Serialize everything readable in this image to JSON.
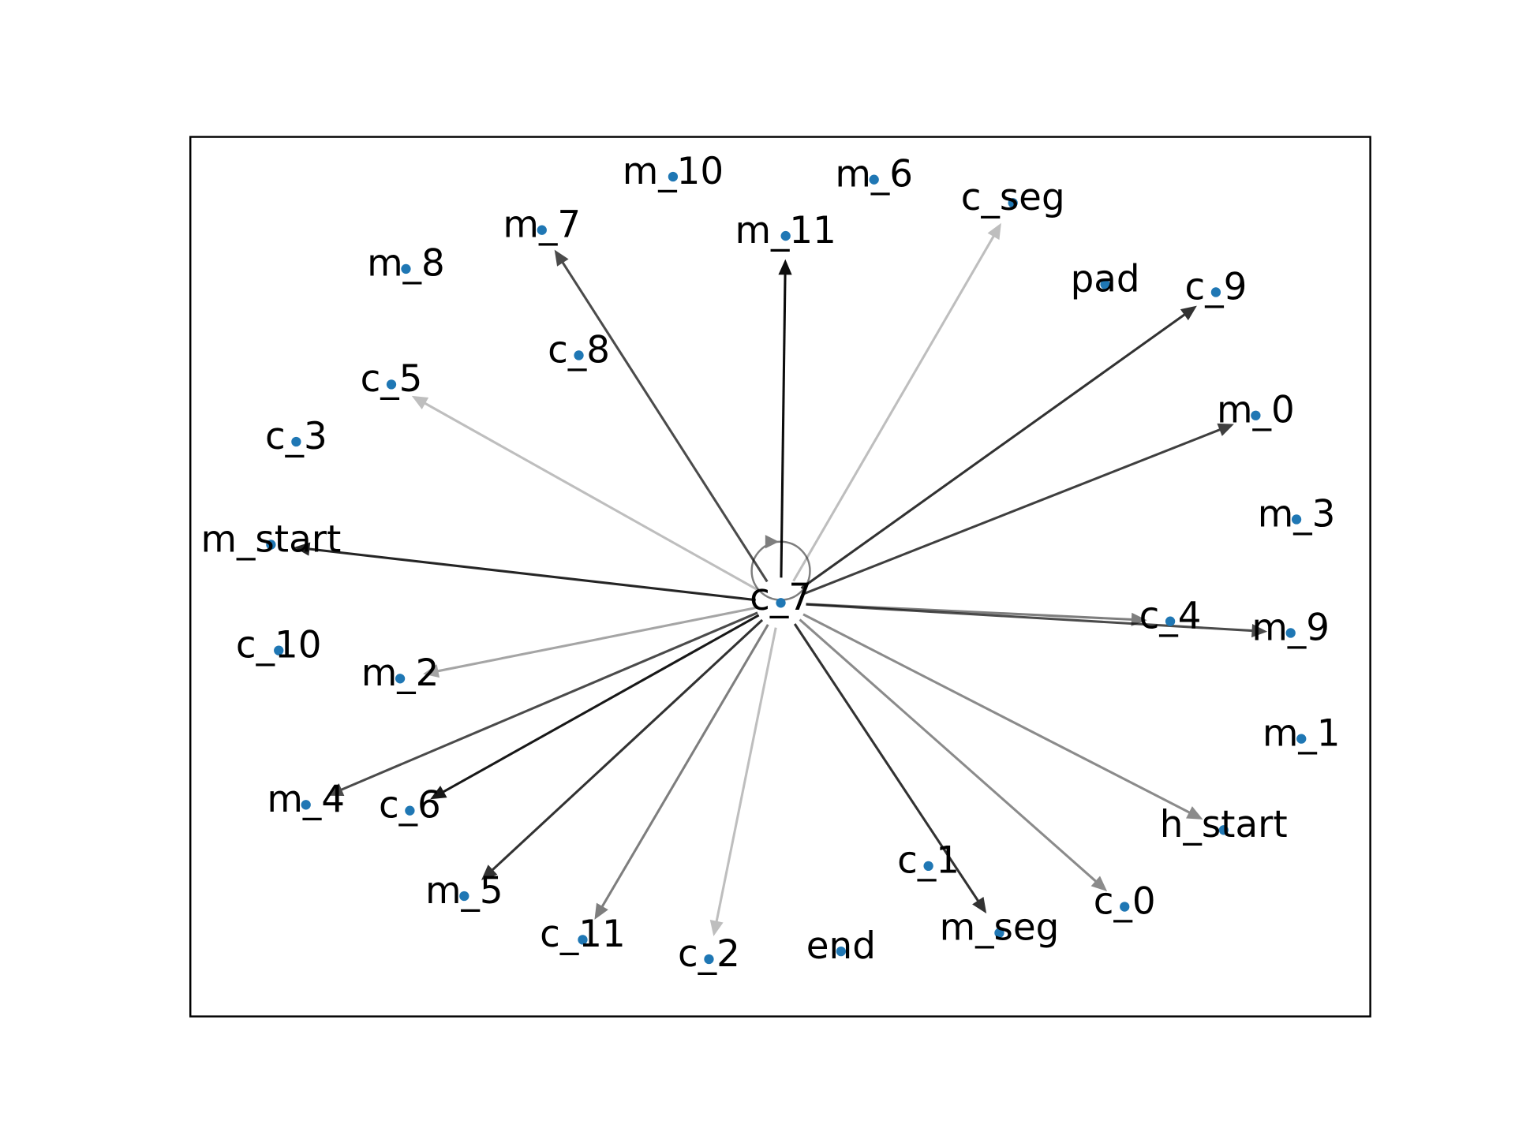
{
  "nodes": [
    {
      "label": "m_10"
    },
    {
      "label": "m_6"
    },
    {
      "label": "c_seg"
    },
    {
      "label": "m_7"
    },
    {
      "label": "m_11"
    },
    {
      "label": "m_8"
    },
    {
      "label": "pad"
    },
    {
      "label": "c_9"
    },
    {
      "label": "c_8"
    },
    {
      "label": "c_5"
    },
    {
      "label": "m_0"
    },
    {
      "label": "c_3"
    },
    {
      "label": "m_3"
    },
    {
      "label": "m_start"
    },
    {
      "label": "c_7"
    },
    {
      "label": "c_4"
    },
    {
      "label": "m_9"
    },
    {
      "label": "c_10"
    },
    {
      "label": "m_2"
    },
    {
      "label": "m_1"
    },
    {
      "label": "m_4"
    },
    {
      "label": "c_6"
    },
    {
      "label": "h_start"
    },
    {
      "label": "c_1"
    },
    {
      "label": "m_5"
    },
    {
      "label": "c_0"
    },
    {
      "label": "m_seg"
    },
    {
      "label": "c_11"
    },
    {
      "label": "end"
    },
    {
      "label": "c_2"
    }
  ],
  "edges": [
    {
      "source": "c_7",
      "target": "m_11"
    },
    {
      "source": "c_7",
      "target": "c_seg"
    },
    {
      "source": "c_7",
      "target": "c_9"
    },
    {
      "source": "c_7",
      "target": "m_0"
    },
    {
      "source": "c_7",
      "target": "c_4"
    },
    {
      "source": "c_7",
      "target": "m_9"
    },
    {
      "source": "c_7",
      "target": "h_start"
    },
    {
      "source": "c_7",
      "target": "c_0"
    },
    {
      "source": "c_7",
      "target": "m_seg"
    },
    {
      "source": "c_7",
      "target": "c_2"
    },
    {
      "source": "c_7",
      "target": "c_11"
    },
    {
      "source": "c_7",
      "target": "m_5"
    },
    {
      "source": "c_7",
      "target": "c_6"
    },
    {
      "source": "c_7",
      "target": "m_4"
    },
    {
      "source": "c_7",
      "target": "m_2"
    },
    {
      "source": "c_7",
      "target": "m_start"
    },
    {
      "source": "c_7",
      "target": "c_5"
    },
    {
      "source": "c_7",
      "target": "m_7"
    },
    {
      "source": "c_7",
      "target": "c_7"
    }
  ]
}
